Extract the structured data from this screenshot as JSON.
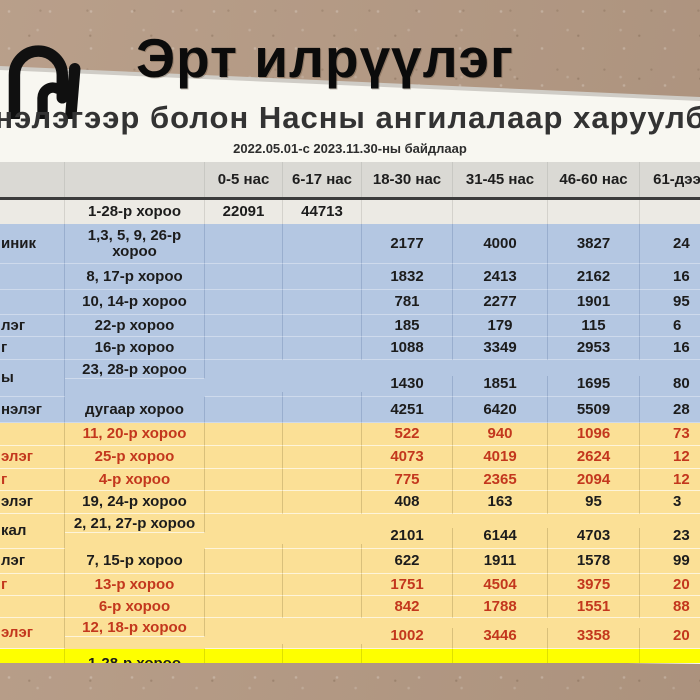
{
  "page": {
    "title": "Эрт илрүүлэг"
  },
  "colors": {
    "kraft_background": "#b59a84",
    "slide_background": "#f8f7f1",
    "header_band": "#dad9d4",
    "blue_section": "#b4c7e2",
    "yellow_section": "#fbe096",
    "highlight_row": "#feff00",
    "red_text": "#c3371d",
    "black_text": "#1c1c1c"
  },
  "table": {
    "title": "нэлэгээр болон Насны ангилалаар харуулб",
    "subtitle": "2022.05.01-с 2023.11.30-ны байдлаар",
    "columns": [
      "0-5 нас",
      "6-17 нас",
      "18-30 нас",
      "31-45 нас",
      "46-60 нас",
      "61-дээ"
    ],
    "rows": [
      {
        "org": "",
        "khoroo": "1-28-р хороо",
        "values": [
          "22091",
          "44713",
          "",
          "",
          "",
          ""
        ],
        "section": "gray",
        "text": "black"
      },
      {
        "org": "иник",
        "khoroo": "1,3, 5, 9, 26-р хороо",
        "values": [
          "",
          "",
          "2177",
          "4000",
          "3827",
          "24"
        ],
        "section": "blue",
        "text": "black"
      },
      {
        "org": "",
        "khoroo": "8, 17-р хороо",
        "values": [
          "",
          "",
          "1832",
          "2413",
          "2162",
          "16"
        ],
        "section": "blue",
        "text": "black"
      },
      {
        "org": "",
        "khoroo": "10, 14-р хороо",
        "values": [
          "",
          "",
          "781",
          "2277",
          "1901",
          "95"
        ],
        "section": "blue",
        "text": "black"
      },
      {
        "org": "лэг",
        "khoroo": "22-р хороо",
        "values": [
          "",
          "",
          "185",
          "179",
          "115",
          "6"
        ],
        "section": "blue",
        "text": "black"
      },
      {
        "org": "г",
        "khoroo": "16-р хороо",
        "values": [
          "",
          "",
          "1088",
          "3349",
          "2953",
          "16"
        ],
        "section": "blue",
        "text": "black"
      },
      {
        "org": "ы",
        "khoroo": "23, 28-р хороо",
        "values": [
          "",
          "",
          "1430",
          "1851",
          "1695",
          "80"
        ],
        "section": "blue",
        "text": "black",
        "tall": true
      },
      {
        "org": "нэлэг",
        "khoroo": "дугаар хороо",
        "values": [
          "",
          "",
          "4251",
          "6420",
          "5509",
          "28"
        ],
        "section": "blue",
        "text": "black"
      },
      {
        "org": "",
        "khoroo": "11, 20-р хороо",
        "values": [
          "",
          "",
          "522",
          "940",
          "1096",
          "73"
        ],
        "section": "yellow",
        "text": "red"
      },
      {
        "org": "элэг",
        "khoroo": "25-р хороо",
        "values": [
          "",
          "",
          "4073",
          "4019",
          "2624",
          "12"
        ],
        "section": "yellow",
        "text": "red"
      },
      {
        "org": "г",
        "khoroo": "4-р хороо",
        "values": [
          "",
          "",
          "775",
          "2365",
          "2094",
          "12"
        ],
        "section": "yellow",
        "text": "red"
      },
      {
        "org": "элэг",
        "khoroo": "19, 24-р хороо",
        "values": [
          "",
          "",
          "408",
          "163",
          "95",
          "3"
        ],
        "section": "yellow",
        "text": "black"
      },
      {
        "org": "кал",
        "khoroo": "2, 21, 27-р хороо",
        "values": [
          "",
          "",
          "2101",
          "6144",
          "4703",
          "23"
        ],
        "section": "yellow",
        "text": "black",
        "tall": true
      },
      {
        "org": "лэг",
        "khoroo": "7, 15-р хороо",
        "values": [
          "",
          "",
          "622",
          "1911",
          "1578",
          "99"
        ],
        "section": "yellow",
        "text": "black"
      },
      {
        "org": "г",
        "khoroo": "13-р хороо",
        "values": [
          "",
          "",
          "1751",
          "4504",
          "3975",
          "20"
        ],
        "section": "yellow",
        "text": "red"
      },
      {
        "org": "",
        "khoroo": "6-р хороо",
        "values": [
          "",
          "",
          "842",
          "1788",
          "1551",
          "88"
        ],
        "section": "yellow",
        "text": "red"
      },
      {
        "org": "элэг",
        "khoroo": "12, 18-р хороо",
        "values": [
          "",
          "",
          "1002",
          "3446",
          "3358",
          "20"
        ],
        "section": "yellow",
        "text": "red",
        "tall": true
      },
      {
        "org": "",
        "khoroo": "1-28-р хороо",
        "values": [
          "",
          "",
          "",
          "",
          "",
          ""
        ],
        "section": "highlight",
        "text": "black"
      }
    ]
  }
}
